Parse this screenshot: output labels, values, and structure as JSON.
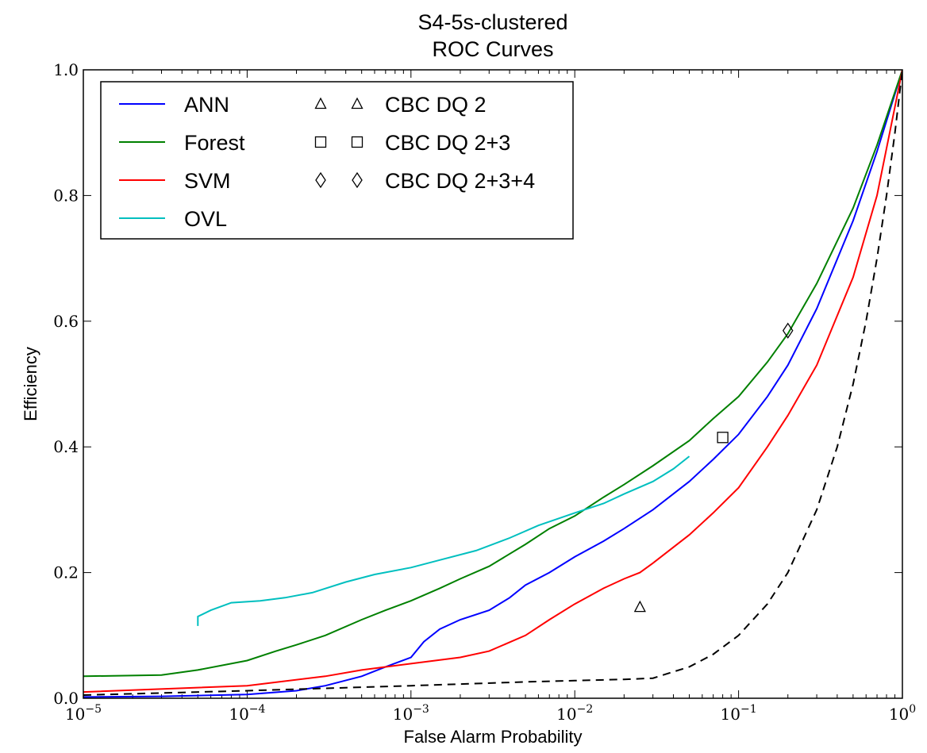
{
  "chart_data": {
    "type": "line",
    "title": "S4-5s-clustered",
    "subtitle": "ROC Curves",
    "xlabel": "False Alarm Probability",
    "ylabel": "Efficiency",
    "xscale": "log",
    "xlim": [
      1e-05,
      1
    ],
    "ylim": [
      0,
      1
    ],
    "grid": false,
    "legend_position": "top-left",
    "x_ticks": [
      {
        "value": 1e-05,
        "base": "10",
        "exp": "−5"
      },
      {
        "value": 0.0001,
        "base": "10",
        "exp": "−4"
      },
      {
        "value": 0.001,
        "base": "10",
        "exp": "−3"
      },
      {
        "value": 0.01,
        "base": "10",
        "exp": "−2"
      },
      {
        "value": 0.1,
        "base": "10",
        "exp": "−1"
      },
      {
        "value": 1,
        "base": "10",
        "exp": "0"
      }
    ],
    "y_ticks": [
      {
        "value": 0.0,
        "label": "0.0"
      },
      {
        "value": 0.2,
        "label": "0.2"
      },
      {
        "value": 0.4,
        "label": "0.4"
      },
      {
        "value": 0.6,
        "label": "0.6"
      },
      {
        "value": 0.8,
        "label": "0.8"
      },
      {
        "value": 1.0,
        "label": "1.0"
      }
    ],
    "series": [
      {
        "name": "ANN",
        "color": "#0000ff",
        "style": "solid",
        "x": [
          1e-05,
          3e-05,
          0.0001,
          0.0002,
          0.0003,
          0.0005,
          0.0007,
          0.001,
          0.0012,
          0.0015,
          0.002,
          0.003,
          0.004,
          0.005,
          0.007,
          0.01,
          0.015,
          0.02,
          0.03,
          0.05,
          0.07,
          0.1,
          0.15,
          0.2,
          0.3,
          0.5,
          0.7,
          1.0
        ],
        "y": [
          0.002,
          0.003,
          0.006,
          0.012,
          0.02,
          0.035,
          0.05,
          0.065,
          0.09,
          0.11,
          0.125,
          0.14,
          0.16,
          0.18,
          0.2,
          0.225,
          0.25,
          0.27,
          0.3,
          0.345,
          0.38,
          0.42,
          0.48,
          0.53,
          0.62,
          0.76,
          0.87,
          1.0
        ]
      },
      {
        "name": "Forest",
        "color": "#008000",
        "style": "solid",
        "x": [
          1e-05,
          3e-05,
          5e-05,
          0.0001,
          0.00015,
          0.0002,
          0.0003,
          0.0005,
          0.0007,
          0.001,
          0.0015,
          0.002,
          0.003,
          0.005,
          0.007,
          0.01,
          0.015,
          0.02,
          0.03,
          0.05,
          0.07,
          0.1,
          0.15,
          0.2,
          0.3,
          0.5,
          0.7,
          1.0
        ],
        "y": [
          0.035,
          0.037,
          0.045,
          0.06,
          0.075,
          0.085,
          0.1,
          0.125,
          0.14,
          0.155,
          0.175,
          0.19,
          0.21,
          0.245,
          0.27,
          0.29,
          0.32,
          0.34,
          0.37,
          0.41,
          0.445,
          0.48,
          0.535,
          0.58,
          0.66,
          0.78,
          0.88,
          1.0
        ]
      },
      {
        "name": "SVM",
        "color": "#ff0000",
        "style": "solid",
        "x": [
          1e-05,
          0.0001,
          0.0003,
          0.0005,
          0.001,
          0.002,
          0.003,
          0.005,
          0.007,
          0.01,
          0.015,
          0.02,
          0.025,
          0.03,
          0.05,
          0.07,
          0.1,
          0.15,
          0.2,
          0.3,
          0.5,
          0.7,
          1.0
        ],
        "y": [
          0.01,
          0.02,
          0.035,
          0.045,
          0.055,
          0.065,
          0.075,
          0.1,
          0.125,
          0.15,
          0.175,
          0.19,
          0.2,
          0.215,
          0.26,
          0.295,
          0.335,
          0.4,
          0.45,
          0.53,
          0.67,
          0.8,
          1.0
        ]
      },
      {
        "name": "OVL",
        "color": "#00bfbf",
        "style": "solid",
        "x": [
          5e-05,
          5e-05,
          6e-05,
          8e-05,
          0.00012,
          0.00017,
          0.00025,
          0.0004,
          0.0006,
          0.001,
          0.0015,
          0.0025,
          0.004,
          0.006,
          0.01,
          0.015,
          0.02,
          0.03,
          0.04,
          0.05
        ],
        "y": [
          0.115,
          0.13,
          0.14,
          0.152,
          0.155,
          0.16,
          0.168,
          0.185,
          0.197,
          0.208,
          0.22,
          0.235,
          0.255,
          0.275,
          0.295,
          0.31,
          0.325,
          0.345,
          0.365,
          0.385
        ]
      },
      {
        "name": "",
        "color": "#000000",
        "style": "dashed",
        "x": [
          1e-05,
          0.0001,
          0.001,
          0.005,
          0.01,
          0.02,
          0.03,
          0.05,
          0.07,
          0.1,
          0.15,
          0.2,
          0.3,
          0.4,
          0.5,
          0.6,
          0.7,
          0.8,
          0.9,
          1.0
        ],
        "y": [
          0.005,
          0.012,
          0.02,
          0.026,
          0.028,
          0.03,
          0.032,
          0.05,
          0.07,
          0.1,
          0.15,
          0.2,
          0.3,
          0.4,
          0.5,
          0.6,
          0.7,
          0.8,
          0.9,
          1.0
        ]
      }
    ],
    "markers": [
      {
        "name": "CBC DQ 2",
        "shape": "triangle",
        "x": 0.025,
        "y": 0.145
      },
      {
        "name": "CBC DQ 2+3",
        "shape": "square",
        "x": 0.08,
        "y": 0.415
      },
      {
        "name": "CBC DQ 2+3+4",
        "shape": "diamond",
        "x": 0.2,
        "y": 0.585
      }
    ],
    "legend": {
      "lines": [
        "ANN",
        "Forest",
        "SVM",
        "OVL"
      ],
      "markers": [
        "CBC DQ 2",
        "CBC DQ 2+3",
        "CBC DQ 2+3+4"
      ]
    }
  }
}
